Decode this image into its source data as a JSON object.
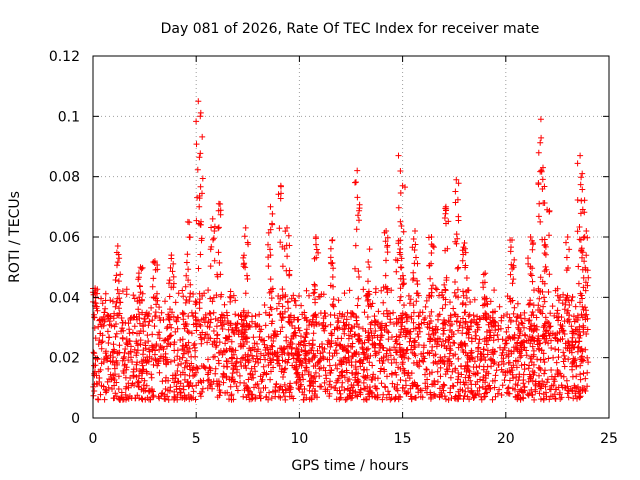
{
  "chart_data": {
    "type": "scatter",
    "title": "Day 081 of 2026, Rate Of TEC Index for receiver mate",
    "xlabel": "GPS time / hours",
    "ylabel": "ROTI / TECUs",
    "xlim": [
      0,
      25
    ],
    "ylim": [
      0,
      0.12
    ],
    "x_ticks": [
      0,
      5,
      10,
      15,
      20,
      25
    ],
    "x_tick_labels": [
      "0",
      "5",
      "10",
      "15",
      "20",
      "25"
    ],
    "y_ticks": [
      0,
      0.02,
      0.04,
      0.06,
      0.08,
      0.1,
      0.12
    ],
    "y_tick_labels": [
      "0",
      "0.02",
      "0.04",
      "0.06",
      "0.08",
      "0.1",
      "0.12"
    ],
    "grid": true,
    "marker": "+",
    "marker_color": "#ff0000",
    "series": [
      {
        "name": "ROTI",
        "x_range": [
          0,
          24
        ],
        "typical_min": 0.006,
        "typical_max": 0.035,
        "median": 0.018,
        "peaks": [
          {
            "x": 0.1,
            "y": 0.043
          },
          {
            "x": 1.2,
            "y": 0.057
          },
          {
            "x": 2.3,
            "y": 0.05
          },
          {
            "x": 3.0,
            "y": 0.052
          },
          {
            "x": 3.8,
            "y": 0.054
          },
          {
            "x": 4.6,
            "y": 0.065
          },
          {
            "x": 5.1,
            "y": 0.105
          },
          {
            "x": 5.2,
            "y": 0.1
          },
          {
            "x": 5.8,
            "y": 0.066
          },
          {
            "x": 6.1,
            "y": 0.071
          },
          {
            "x": 7.4,
            "y": 0.063
          },
          {
            "x": 8.6,
            "y": 0.07
          },
          {
            "x": 9.1,
            "y": 0.077
          },
          {
            "x": 9.4,
            "y": 0.063
          },
          {
            "x": 10.8,
            "y": 0.06
          },
          {
            "x": 11.6,
            "y": 0.059
          },
          {
            "x": 12.8,
            "y": 0.082
          },
          {
            "x": 13.4,
            "y": 0.056
          },
          {
            "x": 14.2,
            "y": 0.062
          },
          {
            "x": 14.8,
            "y": 0.087
          },
          {
            "x": 15.0,
            "y": 0.077
          },
          {
            "x": 15.6,
            "y": 0.062
          },
          {
            "x": 16.4,
            "y": 0.06
          },
          {
            "x": 17.1,
            "y": 0.07
          },
          {
            "x": 17.6,
            "y": 0.079
          },
          {
            "x": 18.0,
            "y": 0.058
          },
          {
            "x": 19.0,
            "y": 0.048
          },
          {
            "x": 20.3,
            "y": 0.059
          },
          {
            "x": 21.2,
            "y": 0.06
          },
          {
            "x": 21.7,
            "y": 0.099
          },
          {
            "x": 21.8,
            "y": 0.083
          },
          {
            "x": 22.0,
            "y": 0.069
          },
          {
            "x": 23.0,
            "y": 0.06
          },
          {
            "x": 23.6,
            "y": 0.087
          },
          {
            "x": 23.7,
            "y": 0.081
          },
          {
            "x": 23.9,
            "y": 0.062
          }
        ]
      }
    ]
  }
}
